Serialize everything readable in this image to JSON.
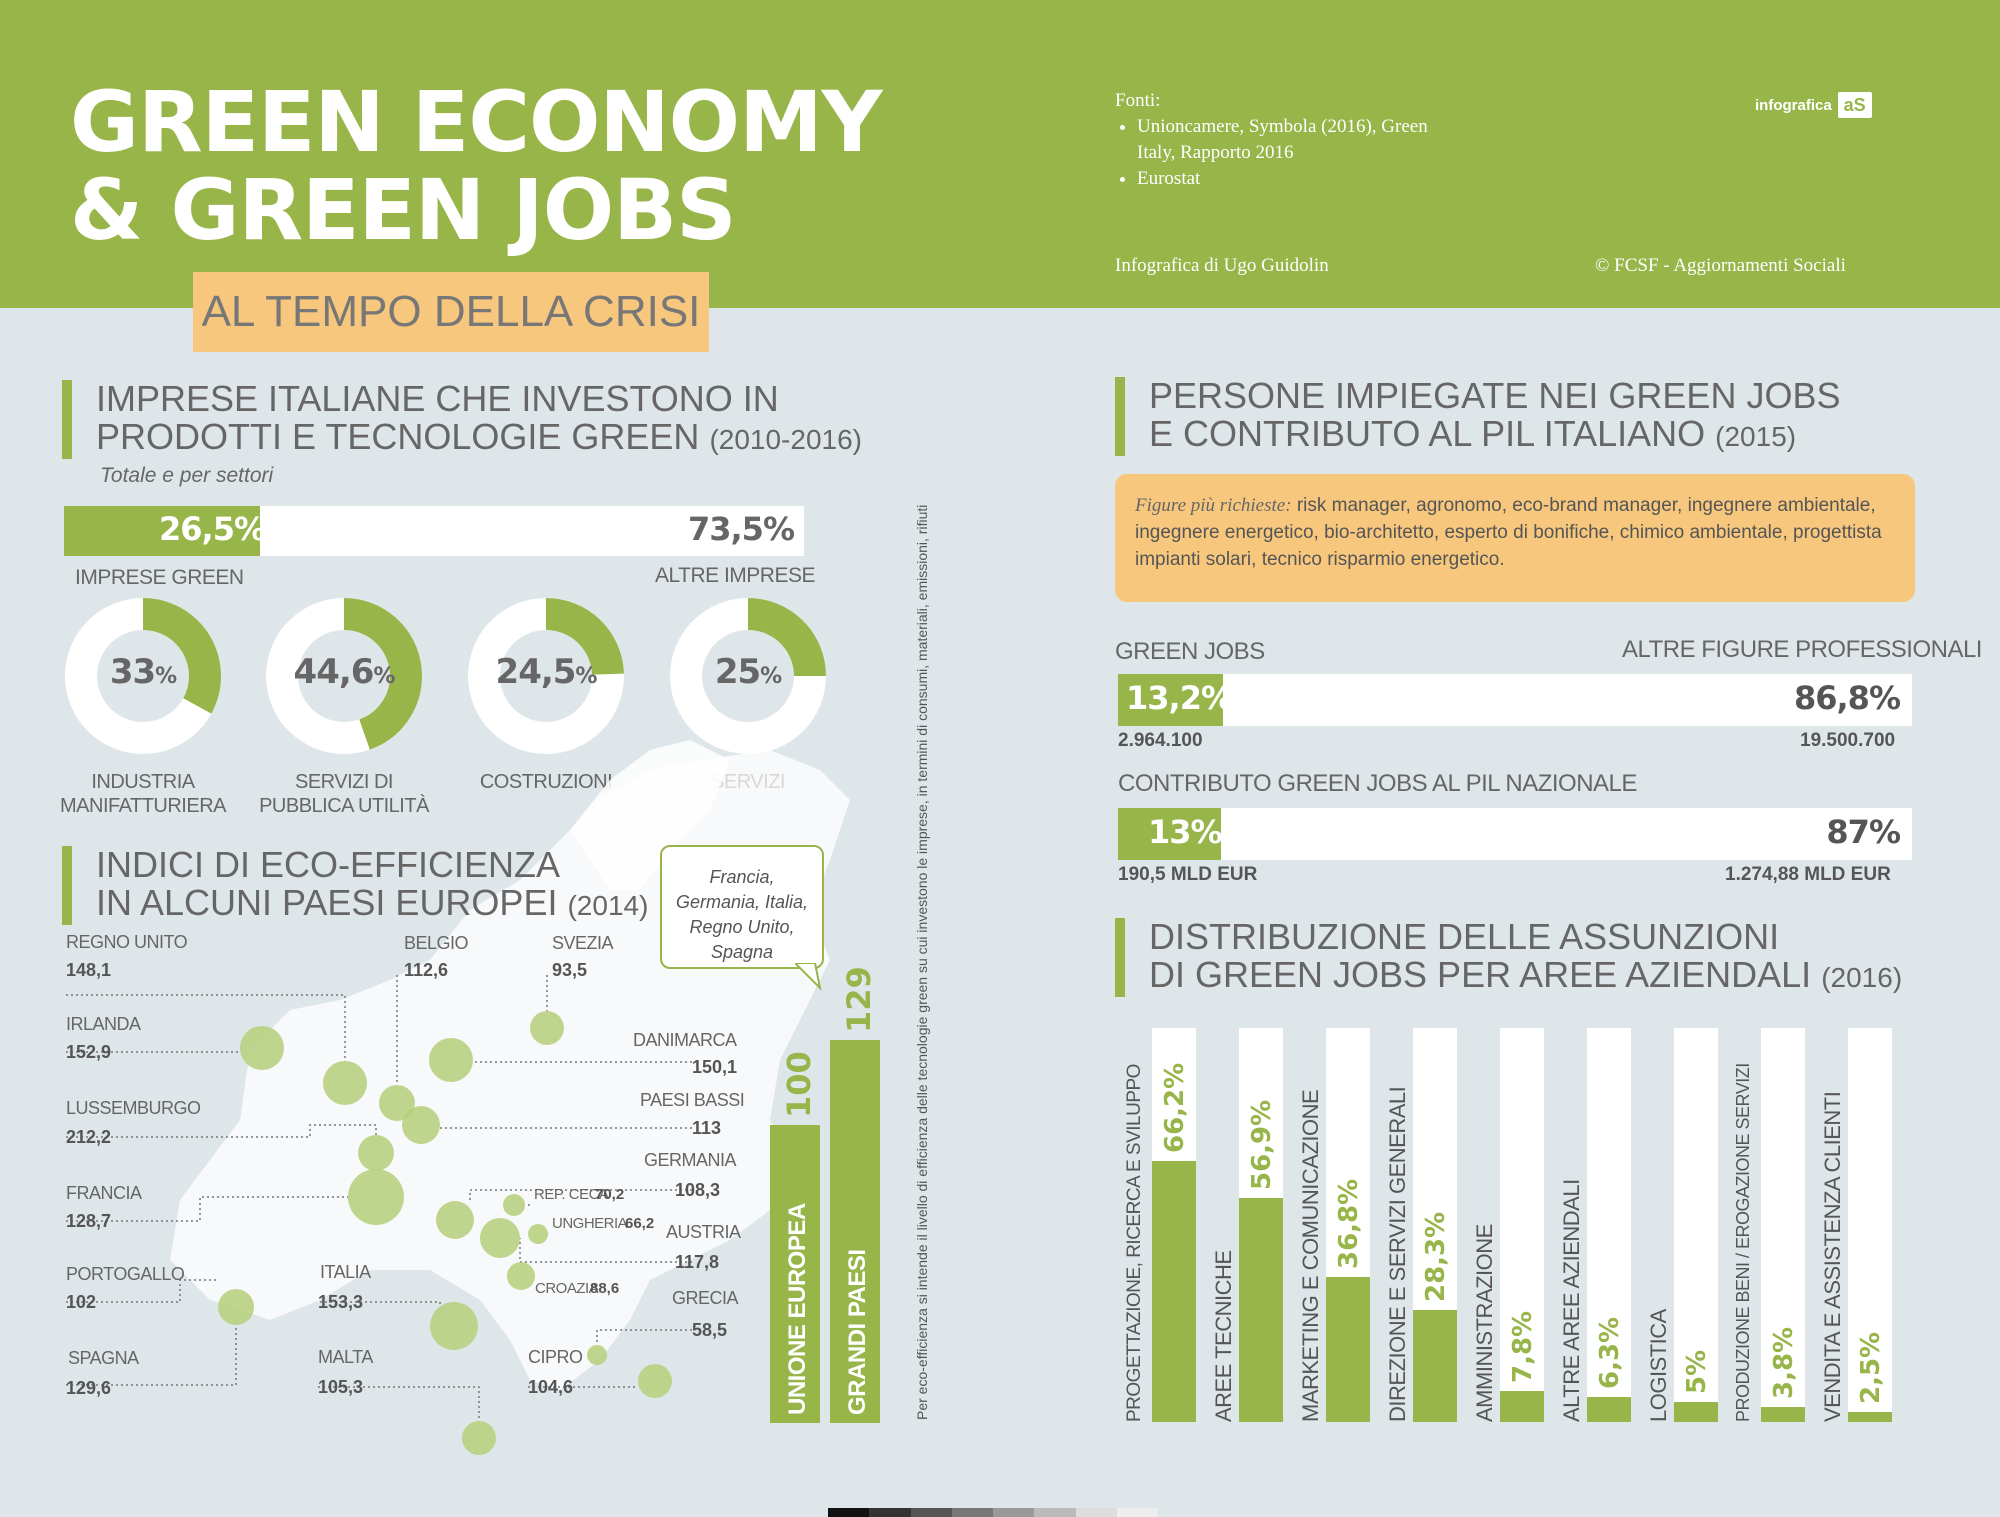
{
  "header": {
    "title_line1": "GREEN ECONOMY",
    "title_line2": "& GREEN JOBS",
    "subtitle": "AL TEMPO DELLA CRISI",
    "sources_label": "Fonti:",
    "source1": "Unioncamere, Symbola (2016), Green Italy, Rapporto 2016",
    "source2": "Eurostat",
    "credit_left": "Infografica di Ugo Guidolin",
    "credit_right": "© FCSF - Aggiornamenti Sociali",
    "brand": "infografica",
    "brand_logo": "aS"
  },
  "imprese": {
    "title_line1": "IMPRESE ITALIANE CHE INVESTONO IN",
    "title_line2": "PRODOTTI E TECNOLOGIE GREEN",
    "years": "(2010-2016)",
    "subtitle": "Totale e per settori",
    "green_value": "26,5%",
    "other_value": "73,5%",
    "green_fraction": 0.265,
    "green_label": "IMPRESE GREEN",
    "other_label": "ALTRE IMPRESE",
    "sectors": [
      {
        "value": "33",
        "fraction": 0.33,
        "label1": "INDUSTRIA",
        "label2": "MANIFATTURIERA"
      },
      {
        "value": "44,6",
        "fraction": 0.446,
        "label1": "SERVIZI DI",
        "label2": "PUBBLICA UTILITÀ"
      },
      {
        "value": "24,5",
        "fraction": 0.245,
        "label1": "COSTRUZIONI",
        "label2": ""
      },
      {
        "value": "25",
        "fraction": 0.25,
        "label1": "SERVIZI",
        "label2": ""
      }
    ],
    "pct": "%"
  },
  "eco": {
    "title_line1": "INDICI DI ECO-EFFICIENZA",
    "title_line2": "IN ALCUNI PAESI EUROPEI",
    "year": "(2014)",
    "countries": [
      {
        "name": "REGNO UNITO",
        "value": "148,1"
      },
      {
        "name": "IRLANDA",
        "value": "152,9"
      },
      {
        "name": "LUSSEMBURGO",
        "value": "212,2"
      },
      {
        "name": "FRANCIA",
        "value": "128,7"
      },
      {
        "name": "PORTOGALLO",
        "value": "102"
      },
      {
        "name": "SPAGNA",
        "value": "129,6"
      },
      {
        "name": "BELGIO",
        "value": "112,6"
      },
      {
        "name": "SVEZIA",
        "value": "93,5"
      },
      {
        "name": "ITALIA",
        "value": "153,3"
      },
      {
        "name": "MALTA",
        "value": "105,3"
      },
      {
        "name": "CIPRO",
        "value": "104,6"
      },
      {
        "name": "DANIMARCA",
        "value": "150,1"
      },
      {
        "name": "PAESI BASSI",
        "value": "113"
      },
      {
        "name": "GERMANIA",
        "value": "108,3"
      },
      {
        "name": "AUSTRIA",
        "value": "117,8"
      },
      {
        "name": "GRECIA",
        "value": "58,5"
      },
      {
        "name": "REP. CECA",
        "value": "70,2"
      },
      {
        "name": "UNGHERIA",
        "value": "66,2"
      },
      {
        "name": "CROAZIA",
        "value": "88,6"
      }
    ],
    "callout": "Francia, Germania, Italia, Regno Unito, Spagna",
    "ue_label": "UNIONE EUROPEA",
    "ue_value": "100",
    "gp_label": "GRANDI PAESI",
    "gp_value": "129",
    "note": "Per eco-efficienza si intende il livello di efficienza delle tecnologie green su cui investono le imprese, in termini di consumi, materiali, emissioni, rifiuti"
  },
  "persone": {
    "title_line1": "PERSONE IMPIEGATE NEI GREEN JOBS",
    "title_line2": "E CONTRIBUTO AL PIL ITALIANO",
    "year": "(2015)",
    "figures_label": "Figure più richieste:",
    "figures_text": " risk manager, agronomo, eco-brand manager, ingegnere ambientale, ingegnere energetico, bio-architetto, esperto di bonifiche, chimico ambientale, progettista impianti solari, tecnico risparmio energetico.",
    "green_jobs_label": "GREEN JOBS",
    "other_label": "ALTRE FIGURE PROFESSIONALI",
    "green_pct": "13,2%",
    "other_pct": "86,8%",
    "green_fraction": 0.132,
    "green_count": "2.964.100",
    "other_count": "19.500.700",
    "pil_label": "CONTRIBUTO GREEN JOBS AL  PIL NAZIONALE",
    "pil_green_pct": "13%",
    "pil_other_pct": "87%",
    "pil_green_fraction": 0.13,
    "pil_green_amount": "190,5 MLD EUR",
    "pil_other_amount": "1.274,88 MLD EUR"
  },
  "distribuzione": {
    "title_line1": "DISTRIBUZIONE DELLE ASSUNZIONI",
    "title_line2": "DI GREEN JOBS PER AREE AZIENDALI",
    "year": "(2016)"
  },
  "chart_data": {
    "type": "bar",
    "categories": [
      "PROGETTAZIONE, RICERCA E SVILUPPO",
      "AREE TECNICHE",
      "MARKETING E COMUNICAZIONE",
      "DIREZIONE E SERVIZI GENERALI",
      "AMMINISTRAZIONE",
      "ALTRE AREE AZIENDALI",
      "LOGISTICA",
      "PRODUZIONE BENI / EROGAZIONE SERVIZI",
      "VENDITA E ASSISTENZA CLIENTI"
    ],
    "values": [
      66.2,
      56.9,
      36.8,
      28.3,
      7.8,
      6.3,
      5,
      3.8,
      2.5
    ],
    "labels": [
      "66,2%",
      "56,9%",
      "36,8%",
      "28,3%",
      "7,8%",
      "6,3%",
      "5%",
      "3,8%",
      "2,5%"
    ],
    "ylim": [
      0,
      100
    ],
    "color": "#97b549"
  },
  "colors": {
    "green": "#97b549",
    "orange": "#f7c77d",
    "background": "#dfe6ea"
  }
}
